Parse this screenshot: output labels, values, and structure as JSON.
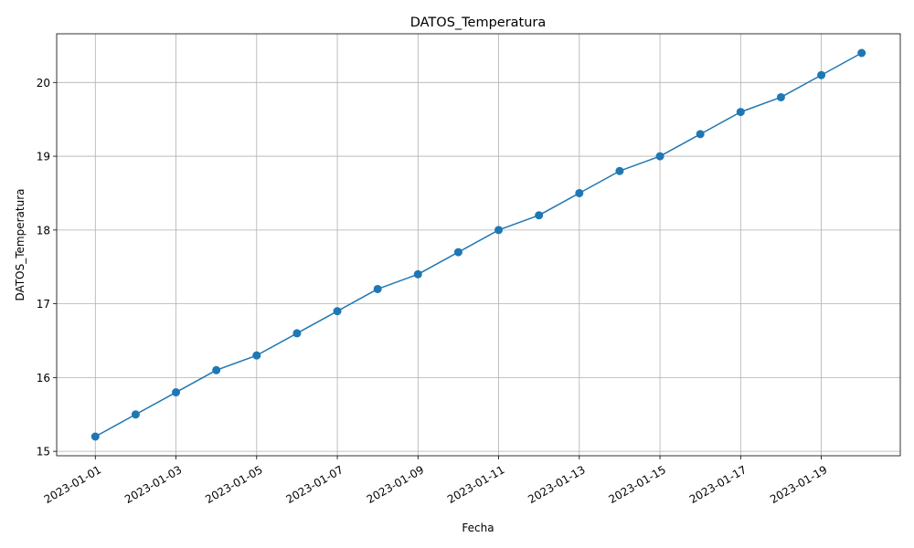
{
  "chart_data": {
    "type": "line",
    "title": "DATOS_Temperatura",
    "xlabel": "Fecha",
    "ylabel": "DATOS_Temperatura",
    "x": [
      "2023-01-01",
      "2023-01-02",
      "2023-01-03",
      "2023-01-04",
      "2023-01-05",
      "2023-01-06",
      "2023-01-07",
      "2023-01-08",
      "2023-01-09",
      "2023-01-10",
      "2023-01-11",
      "2023-01-12",
      "2023-01-13",
      "2023-01-14",
      "2023-01-15",
      "2023-01-16",
      "2023-01-17",
      "2023-01-18",
      "2023-01-19",
      "2023-01-20"
    ],
    "series": [
      {
        "values": [
          15.2,
          15.5,
          15.8,
          16.1,
          16.3,
          16.6,
          16.9,
          17.2,
          17.4,
          17.7,
          18.0,
          18.2,
          18.5,
          18.8,
          19.0,
          19.3,
          19.6,
          19.8,
          20.1,
          20.4
        ],
        "color": "#1f77b4"
      }
    ],
    "x_ticks": [
      "2023-01-01",
      "2023-01-03",
      "2023-01-05",
      "2023-01-07",
      "2023-01-09",
      "2023-01-11",
      "2023-01-13",
      "2023-01-15",
      "2023-01-17",
      "2023-01-19"
    ],
    "y_ticks": [
      15,
      16,
      17,
      18,
      19,
      20
    ],
    "ylim": [
      14.94,
      20.66
    ],
    "xlim": [
      "2022-12-31T01:00",
      "2023-01-20T23:00"
    ],
    "grid": true,
    "legend": false
  }
}
